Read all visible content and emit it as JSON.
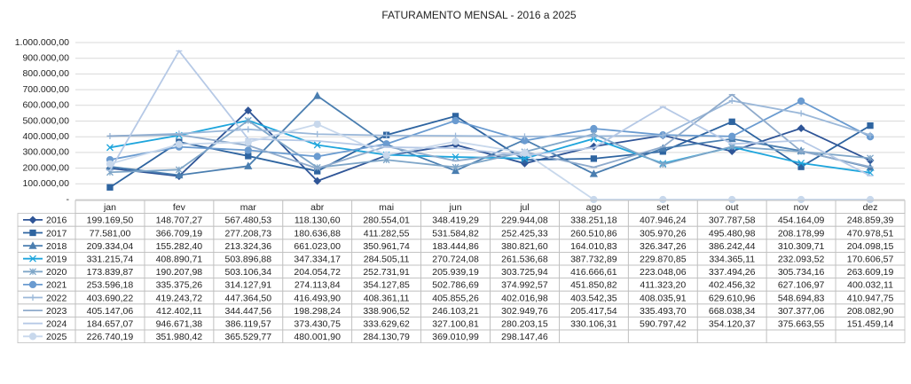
{
  "chart_data": {
    "type": "line",
    "title": "FATURAMENTO MENSAL - 2016  a  2025",
    "categories": [
      "jan",
      "fev",
      "mar",
      "abr",
      "mai",
      "jun",
      "jul",
      "ago",
      "set",
      "out",
      "nov",
      "dez"
    ],
    "ylim": [
      0,
      1000000
    ],
    "yticks": [
      {
        "value": 0,
        "label": "-"
      },
      {
        "value": 100000,
        "label": "100.000,00"
      },
      {
        "value": 200000,
        "label": "200.000,00"
      },
      {
        "value": 300000,
        "label": "300.000,00"
      },
      {
        "value": 400000,
        "label": "400.000,00"
      },
      {
        "value": 500000,
        "label": "500.000,00"
      },
      {
        "value": 600000,
        "label": "600.000,00"
      },
      {
        "value": 700000,
        "label": "700.000,00"
      },
      {
        "value": 800000,
        "label": "800.000,00"
      },
      {
        "value": 900000,
        "label": "900.000,00"
      },
      {
        "value": 1000000,
        "label": "1.000.000,00"
      }
    ],
    "grid": true,
    "series": [
      {
        "name": "2016",
        "color": "#2f5597",
        "marker": "diamond",
        "values": [
          199169.5,
          148707.27,
          567480.53,
          118130.6,
          280554.01,
          348419.29,
          229944.08,
          338251.18,
          407946.24,
          307787.58,
          454164.09,
          248859.39
        ],
        "value_labels": [
          "199.169,50",
          "148.707,27",
          "567.480,53",
          "118.130,60",
          "280.554,01",
          "348.419,29",
          "229.944,08",
          "338.251,18",
          "407.946,24",
          "307.787,58",
          "454.164,09",
          "248.859,39"
        ]
      },
      {
        "name": "2017",
        "color": "#2e64a0",
        "marker": "square",
        "values": [
          77581,
          366709.19,
          277208.73,
          180636.88,
          411282.55,
          531584.82,
          252425.33,
          260510.86,
          305970.26,
          495480.98,
          208178.99,
          470978.51
        ],
        "value_labels": [
          "77.581,00",
          "366.709,19",
          "277.208,73",
          "180.636,88",
          "411.282,55",
          "531.584,82",
          "252.425,33",
          "260.510,86",
          "305.970,26",
          "495.480,98",
          "208.178,99",
          "470.978,51"
        ]
      },
      {
        "name": "2018",
        "color": "#4a7eb0",
        "marker": "triangle",
        "values": [
          209334.04,
          155282.4,
          213324.36,
          661023,
          350961.74,
          183444.86,
          380821.6,
          164010.83,
          326347.26,
          386242.44,
          310309.71,
          204098.15
        ],
        "value_labels": [
          "209.334,04",
          "155.282,40",
          "213.324,36",
          "661.023,00",
          "350.961,74",
          "183.444,86",
          "380.821,60",
          "164.010,83",
          "326.347,26",
          "386.242,44",
          "310.309,71",
          "204.098,15"
        ]
      },
      {
        "name": "2019",
        "color": "#1ea5dc",
        "marker": "x",
        "values": [
          331215.74,
          408890.71,
          503896.88,
          347334.17,
          284505.11,
          270724.08,
          261536.68,
          387732.89,
          229870.85,
          334365.11,
          232093.52,
          170606.57
        ],
        "value_labels": [
          "331.215,74",
          "408.890,71",
          "503.896,88",
          "347.334,17",
          "284.505,11",
          "270.724,08",
          "261.536,68",
          "387.732,89",
          "229.870,85",
          "334.365,11",
          "232.093,52",
          "170.606,57"
        ]
      },
      {
        "name": "2020",
        "color": "#7fa6c8",
        "marker": "star",
        "values": [
          173839.87,
          190207.98,
          503106.34,
          204054.72,
          252731.91,
          205939.19,
          303725.94,
          416666.61,
          223048.06,
          337494.26,
          305734.16,
          263609.19
        ],
        "value_labels": [
          "173.839,87",
          "190.207,98",
          "503.106,34",
          "204.054,72",
          "252.731,91",
          "205.939,19",
          "303.725,94",
          "416.666,61",
          "223.048,06",
          "337.494,26",
          "305.734,16",
          "263.609,19"
        ]
      },
      {
        "name": "2021",
        "color": "#6a9bd0",
        "marker": "circle",
        "values": [
          253596.18,
          335375.26,
          314127.91,
          274113.84,
          354127.85,
          502786.69,
          374992.57,
          451850.82,
          411323.2,
          402456.32,
          627106.97,
          400032.11
        ],
        "value_labels": [
          "253.596,18",
          "335.375,26",
          "314.127,91",
          "274.113,84",
          "354.127,85",
          "502.786,69",
          "374.992,57",
          "451.850,82",
          "411.323,20",
          "402.456,32",
          "627.106,97",
          "400.032,11"
        ]
      },
      {
        "name": "2022",
        "color": "#9bb8d9",
        "marker": "plus",
        "values": [
          403690.22,
          419243.72,
          447364.5,
          416493.9,
          408361.11,
          405855.26,
          402016.98,
          403542.35,
          408035.91,
          629610.96,
          548694.83,
          410947.75
        ],
        "value_labels": [
          "403.690,22",
          "419.243,72",
          "447.364,50",
          "416.493,90",
          "408.361,11",
          "405.855,26",
          "402.016,98",
          "403.542,35",
          "408.035,91",
          "629.610,96",
          "548.694,83",
          "410.947,75"
        ]
      },
      {
        "name": "2023",
        "color": "#8fabcc",
        "marker": "dash",
        "values": [
          405147.06,
          412402.11,
          344447.56,
          198298.24,
          338906.52,
          246103.21,
          302949.76,
          205417.54,
          335493.7,
          668038.34,
          307377.06,
          208082.9
        ],
        "value_labels": [
          "405.147,06",
          "412.402,11",
          "344.447,56",
          "198.298,24",
          "338.906,52",
          "246.103,21",
          "302.949,76",
          "205.417,54",
          "335.493,70",
          "668.038,34",
          "307.377,06",
          "208.082,90"
        ]
      },
      {
        "name": "2024",
        "color": "#b6c9e6",
        "marker": "dash",
        "values": [
          184657.07,
          946671.38,
          386119.57,
          373430.75,
          333629.62,
          327100.81,
          280203.15,
          330106.31,
          590797.42,
          354120.37,
          375663.55,
          151459.14
        ],
        "value_labels": [
          "184.657,07",
          "946.671,38",
          "386.119,57",
          "373.430,75",
          "333.629,62",
          "327.100,81",
          "280.203,15",
          "330.106,31",
          "590.797,42",
          "354.120,37",
          "375.663,55",
          "151.459,14"
        ]
      },
      {
        "name": "2025",
        "color": "#c8d8ec",
        "marker": "circle",
        "values": [
          226740.19,
          351980.42,
          365529.77,
          480001.9,
          284130.79,
          369010.99,
          298147.46,
          0,
          0,
          0,
          0,
          0
        ],
        "value_labels": [
          "226.740,19",
          "351.980,42",
          "365.529,77",
          "480.001,90",
          "284.130,79",
          "369.010,99",
          "298.147,46",
          null,
          null,
          null,
          null,
          null
        ]
      }
    ]
  }
}
